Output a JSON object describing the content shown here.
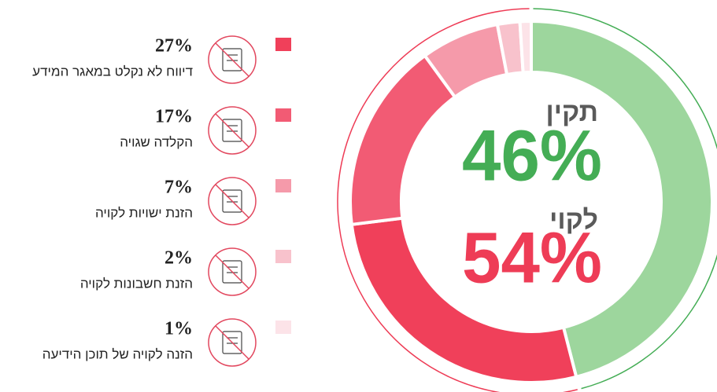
{
  "chart_data": {
    "type": "donut",
    "categories": [
      "תקין",
      "דיווח לא נקלט במאגר המידע",
      "הקלדה שגויה",
      "הזנת ישויות לקויה",
      "הזנת חשבונות לקויה",
      "הזנה לקויה של תוכן הידיעה"
    ],
    "values": [
      46,
      27,
      17,
      7,
      2,
      1
    ],
    "value_labels": [
      "46%",
      "27%",
      "17%",
      "7%",
      "2%",
      "1%"
    ],
    "colors": [
      "#9dd69d",
      "#f0405a",
      "#f25b74",
      "#f59aaa",
      "#f8c2cc",
      "#fce3e8"
    ],
    "groups": [
      {
        "name": "תקין",
        "value": 46,
        "value_label": "46%",
        "color": "#44ad55"
      },
      {
        "name": "לקוי",
        "value": 54,
        "value_label": "54%",
        "color": "#ee3c56"
      }
    ]
  }
}
